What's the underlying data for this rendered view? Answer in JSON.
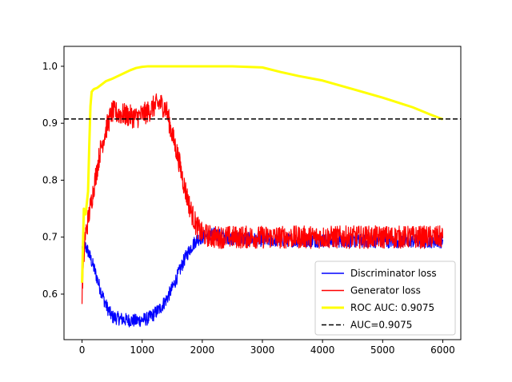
{
  "chart_data": {
    "type": "line",
    "title": "",
    "xlabel": "",
    "ylabel": "",
    "xlim": [
      -300,
      6300
    ],
    "ylim": [
      0.52,
      1.035
    ],
    "x_ticks": [
      0,
      1000,
      2000,
      3000,
      4000,
      5000,
      6000
    ],
    "y_ticks": [
      0.6,
      0.7,
      0.8,
      0.9,
      1.0
    ],
    "x_tick_labels": [
      "0",
      "1000",
      "2000",
      "3000",
      "4000",
      "5000",
      "6000"
    ],
    "y_tick_labels": [
      "0.6",
      "0.7",
      "0.8",
      "0.9",
      "1.0"
    ],
    "grid": false,
    "legend_position": "lower-right",
    "series": [
      {
        "name": "Discriminator loss",
        "color": "#0000ff",
        "style": "solid",
        "noise": 0.012,
        "x": [
          0,
          50,
          100,
          200,
          300,
          400,
          500,
          700,
          900,
          1100,
          1200,
          1300,
          1400,
          1500,
          1600,
          1700,
          1800,
          1900,
          2000,
          2200,
          2500,
          3000,
          4000,
          5000,
          6000
        ],
        "y": [
          0.68,
          0.685,
          0.675,
          0.645,
          0.61,
          0.58,
          0.56,
          0.555,
          0.553,
          0.557,
          0.565,
          0.575,
          0.59,
          0.61,
          0.635,
          0.66,
          0.68,
          0.695,
          0.7,
          0.705,
          0.698,
          0.695,
          0.694,
          0.693,
          0.693
        ]
      },
      {
        "name": "Generator loss",
        "color": "#ff0000",
        "style": "solid",
        "noise": 0.02,
        "x": [
          0,
          50,
          100,
          200,
          300,
          400,
          500,
          700,
          900,
          1100,
          1200,
          1300,
          1400,
          1500,
          1600,
          1700,
          1800,
          1900,
          2000,
          2200,
          2500,
          3000,
          4000,
          5000,
          6000
        ],
        "y": [
          0.6,
          0.7,
          0.73,
          0.79,
          0.85,
          0.89,
          0.92,
          0.915,
          0.91,
          0.92,
          0.93,
          0.935,
          0.925,
          0.88,
          0.84,
          0.79,
          0.75,
          0.72,
          0.705,
          0.7,
          0.7,
          0.7,
          0.7,
          0.7,
          0.7
        ]
      },
      {
        "name": "ROC AUC: 0.9075",
        "color": "#ffff00",
        "style": "thick",
        "noise": 0,
        "x": [
          0,
          30,
          60,
          100,
          120,
          140,
          160,
          180,
          200,
          250,
          300,
          350,
          400,
          450,
          500,
          600,
          700,
          800,
          900,
          1000,
          1100,
          1200,
          1400,
          1600,
          2000,
          2500,
          3000,
          3300,
          3600,
          4000,
          4500,
          5000,
          5500,
          5800,
          6000
        ],
        "y": [
          0.62,
          0.75,
          0.74,
          0.78,
          0.86,
          0.93,
          0.955,
          0.958,
          0.96,
          0.962,
          0.966,
          0.97,
          0.974,
          0.976,
          0.978,
          0.983,
          0.988,
          0.993,
          0.997,
          0.999,
          1.0,
          1.0,
          1.0,
          1.0,
          1.0,
          1.0,
          0.998,
          0.99,
          0.983,
          0.975,
          0.96,
          0.945,
          0.928,
          0.915,
          0.907
        ]
      },
      {
        "name": "AUC=0.9075",
        "color": "#000000",
        "style": "dashed",
        "noise": 0,
        "x": [
          -300,
          6300
        ],
        "y": [
          0.9075,
          0.9075
        ]
      }
    ]
  }
}
